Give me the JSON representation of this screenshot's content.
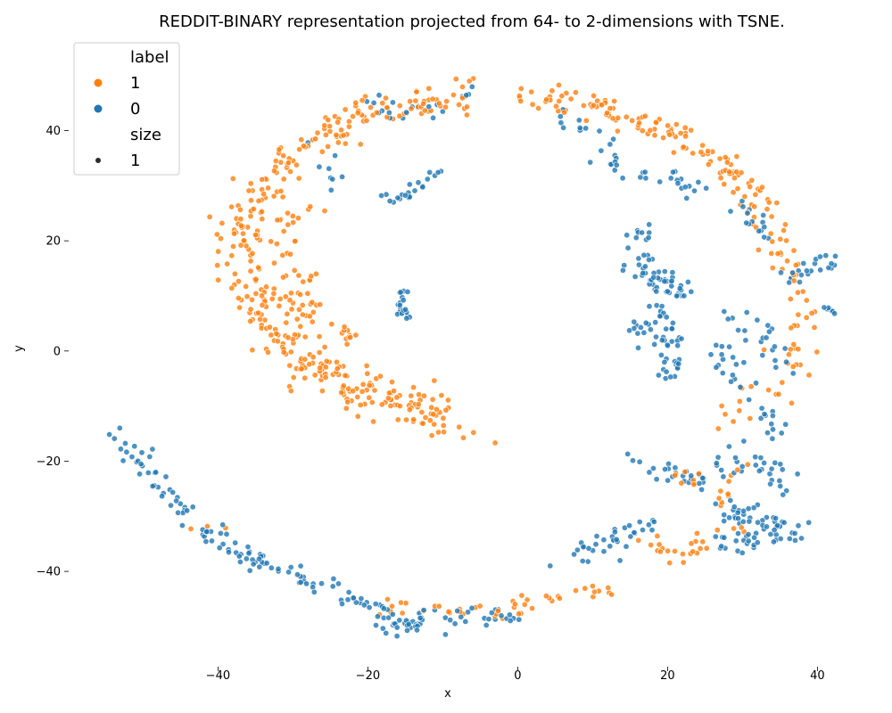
{
  "chart_data": {
    "type": "scatter",
    "title": "REDDIT-BINARY representation projected from 64- to 2-dimensions with TSNE.",
    "xlabel": "x",
    "ylabel": "y",
    "xlim": [
      -56,
      44
    ],
    "ylim": [
      -56,
      54
    ],
    "xticks": [
      -40,
      -20,
      0,
      20,
      40
    ],
    "yticks": [
      -40,
      -20,
      0,
      20,
      40
    ],
    "xtick_labels": [
      "−40",
      "−20",
      "0",
      "20",
      "40"
    ],
    "ytick_labels": [
      "−40",
      "−20",
      "0",
      "20",
      "40"
    ],
    "grid": false,
    "legend": {
      "placement": "top-left",
      "hue_title": "label",
      "size_title": "size",
      "entries": [
        {
          "label": "1",
          "color": "#ff7f0e"
        },
        {
          "label": "0",
          "color": "#1f77b4"
        }
      ],
      "size_entries": [
        {
          "label": "1",
          "color": "#2b2b2b"
        }
      ]
    },
    "series": [
      {
        "name": "1",
        "color": "#ff7f0e",
        "clusters": [
          {
            "path": [
              [
                -38,
                16
              ],
              [
                -36,
                12
              ],
              [
                -33,
                5
              ],
              [
                -30,
                0
              ],
              [
                -26,
                -4
              ],
              [
                -21,
                -7
              ],
              [
                -16,
                -8
              ],
              [
                -13,
                -11
              ],
              [
                -10,
                -13
              ],
              [
                -8,
                -15
              ]
            ],
            "spread": 3.0,
            "count": 200
          },
          {
            "path": [
              [
                -38,
                18
              ],
              [
                -36,
                25
              ],
              [
                -33,
                31
              ],
              [
                -30,
                35
              ],
              [
                -26,
                39
              ],
              [
                -22,
                42
              ],
              [
                -17,
                44
              ],
              [
                -13,
                45
              ],
              [
                -9,
                46
              ],
              [
                -6,
                47
              ]
            ],
            "spread": 2.6,
            "count": 160
          },
          {
            "path": [
              [
                -30,
                27
              ],
              [
                -31,
                18
              ],
              [
                -29,
                10
              ],
              [
                -28,
                3
              ]
            ],
            "spread": 2.5,
            "count": 60
          },
          {
            "path": [
              [
                -23,
                4
              ],
              [
                -22,
                2.5
              ]
            ],
            "spread": 1.0,
            "count": 10
          },
          {
            "path": [
              [
                2,
                46
              ],
              [
                5,
                46
              ],
              [
                9,
                45
              ],
              [
                13,
                43
              ],
              [
                17,
                41
              ],
              [
                21,
                39
              ],
              [
                25,
                36
              ],
              [
                28,
                33
              ],
              [
                31,
                30
              ],
              [
                33,
                27
              ]
            ],
            "spread": 2.2,
            "count": 120
          },
          {
            "path": [
              [
                32,
                26
              ],
              [
                34,
                21
              ],
              [
                36,
                16
              ],
              [
                38,
                12
              ],
              [
                39,
                8
              ],
              [
                38,
                3
              ],
              [
                37,
                -2
              ],
              [
                36,
                -6
              ],
              [
                35,
                -9
              ]
            ],
            "spread": 2.3,
            "count": 60
          },
          {
            "path": [
              [
                -18,
                -46
              ],
              [
                -12,
                -47
              ],
              [
                -7,
                -47
              ],
              [
                -2,
                -47
              ],
              [
                2,
                -46
              ],
              [
                6,
                -45
              ],
              [
                10,
                -43
              ],
              [
                13,
                -44
              ]
            ],
            "spread": 1.5,
            "count": 45
          },
          {
            "path": [
              [
                17,
                -33
              ],
              [
                19,
                -36
              ],
              [
                22,
                -37
              ],
              [
                26,
                -34
              ],
              [
                29,
                -31
              ]
            ],
            "spread": 1.8,
            "count": 25
          },
          {
            "path": [
              [
                21,
                -22
              ],
              [
                24,
                -24
              ],
              [
                27,
                -26
              ],
              [
                29,
                -21
              ]
            ],
            "spread": 2.0,
            "count": 18
          },
          {
            "path": [
              [
                27,
                -14
              ],
              [
                28,
                -10
              ],
              [
                30,
                -5
              ]
            ],
            "spread": 2.0,
            "count": 10
          },
          {
            "path": [
              [
                -44,
                -33
              ],
              [
                -39,
                -31
              ]
            ],
            "spread": 1.0,
            "count": 3
          }
        ]
      },
      {
        "name": "0",
        "color": "#1f77b4",
        "clusters": [
          {
            "path": [
              [
                -54,
                -15
              ],
              [
                -51,
                -19
              ],
              [
                -48,
                -24
              ],
              [
                -45,
                -28
              ],
              [
                -42,
                -32
              ],
              [
                -38,
                -36
              ],
              [
                -33,
                -39
              ],
              [
                -28,
                -42
              ],
              [
                -24,
                -44
              ],
              [
                -20,
                -46
              ],
              [
                -16,
                -48
              ],
              [
                -12,
                -49
              ],
              [
                -8,
                -48
              ],
              [
                -4,
                -48
              ],
              [
                0,
                -48
              ]
            ],
            "spread": 1.5,
            "count": 150
          },
          {
            "path": [
              [
                6,
                -37
              ],
              [
                9,
                -36
              ],
              [
                12,
                -35
              ],
              [
                15,
                -33
              ],
              [
                18,
                -31
              ]
            ],
            "spread": 1.8,
            "count": 35
          },
          {
            "path": [
              [
                -18,
                -50
              ],
              [
                -15,
                -50
              ],
              [
                -12,
                -49
              ]
            ],
            "spread": 1.2,
            "count": 20
          },
          {
            "path": [
              [
                -17,
                27
              ],
              [
                -14,
                29
              ],
              [
                -12,
                31
              ],
              [
                -10,
                32
              ]
            ],
            "spread": 1.0,
            "count": 22
          },
          {
            "path": [
              [
                -15.5,
                11
              ],
              [
                -15.5,
                8
              ],
              [
                -15,
                6
              ]
            ],
            "spread": 0.8,
            "count": 20
          },
          {
            "path": [
              [
                14,
                23
              ],
              [
                16,
                20
              ],
              [
                17,
                15
              ],
              [
                18,
                12
              ],
              [
                21,
                10
              ],
              [
                22,
                13
              ]
            ],
            "spread": 2.0,
            "count": 60
          },
          {
            "path": [
              [
                19,
                8
              ],
              [
                20,
                5
              ],
              [
                21,
                2
              ],
              [
                20,
                -2
              ],
              [
                21,
                -5
              ]
            ],
            "spread": 1.8,
            "count": 40
          },
          {
            "path": [
              [
                16,
                5
              ],
              [
                17,
                3
              ]
            ],
            "spread": 1.2,
            "count": 10
          },
          {
            "path": [
              [
                26,
                1
              ],
              [
                28,
                -2
              ],
              [
                29,
                -5
              ],
              [
                31,
                -7
              ]
            ],
            "spread": 2.0,
            "count": 18
          },
          {
            "path": [
              [
                29,
                7
              ],
              [
                31,
                5
              ],
              [
                33,
                2
              ],
              [
                35,
                -1
              ],
              [
                36,
                -4
              ]
            ],
            "spread": 2.0,
            "count": 22
          },
          {
            "path": [
              [
                36,
                13
              ],
              [
                38,
                15
              ],
              [
                40,
                16
              ],
              [
                42,
                16
              ]
            ],
            "spread": 1.5,
            "count": 22
          },
          {
            "path": [
              [
                41,
                8
              ],
              [
                42,
                7
              ]
            ],
            "spread": 0.8,
            "count": 6
          },
          {
            "path": [
              [
                33,
                -10
              ],
              [
                34,
                -14
              ],
              [
                35,
                -17
              ]
            ],
            "spread": 1.5,
            "count": 12
          },
          {
            "path": [
              [
                16,
                -19
              ],
              [
                19,
                -22
              ],
              [
                22,
                -24
              ],
              [
                26,
                -22
              ],
              [
                30,
                -20
              ],
              [
                34,
                -22
              ],
              [
                36,
                -25
              ]
            ],
            "spread": 2.2,
            "count": 55
          },
          {
            "path": [
              [
                27,
                -29
              ],
              [
                30,
                -30
              ],
              [
                33,
                -31
              ],
              [
                36,
                -32
              ],
              [
                38,
                -33
              ]
            ],
            "spread": 2.0,
            "count": 45
          },
          {
            "path": [
              [
                26,
                -34
              ],
              [
                29,
                -35
              ],
              [
                33,
                -35
              ],
              [
                37,
                -34
              ]
            ],
            "spread": 1.6,
            "count": 25
          },
          {
            "path": [
              [
                11,
                35
              ],
              [
                15,
                33
              ],
              [
                19,
                32
              ],
              [
                23,
                31
              ],
              [
                26,
                30
              ]
            ],
            "spread": 2.0,
            "count": 28
          },
          {
            "path": [
              [
                6,
                42
              ],
              [
                9,
                40
              ],
              [
                12,
                38
              ]
            ],
            "spread": 1.2,
            "count": 12
          },
          {
            "path": [
              [
                -20,
                45
              ],
              [
                -15,
                43
              ],
              [
                -11,
                44
              ],
              [
                -8,
                46
              ],
              [
                -5,
                49
              ]
            ],
            "spread": 1.6,
            "count": 20
          },
          {
            "path": [
              [
                -29,
                38
              ],
              [
                -26,
                35
              ],
              [
                -24,
                30
              ]
            ],
            "spread": 1.5,
            "count": 8
          },
          {
            "path": [
              [
                30,
                27
              ],
              [
                31,
                24
              ],
              [
                32,
                22
              ],
              [
                33,
                20
              ]
            ],
            "spread": 1.5,
            "count": 15
          }
        ]
      }
    ]
  }
}
